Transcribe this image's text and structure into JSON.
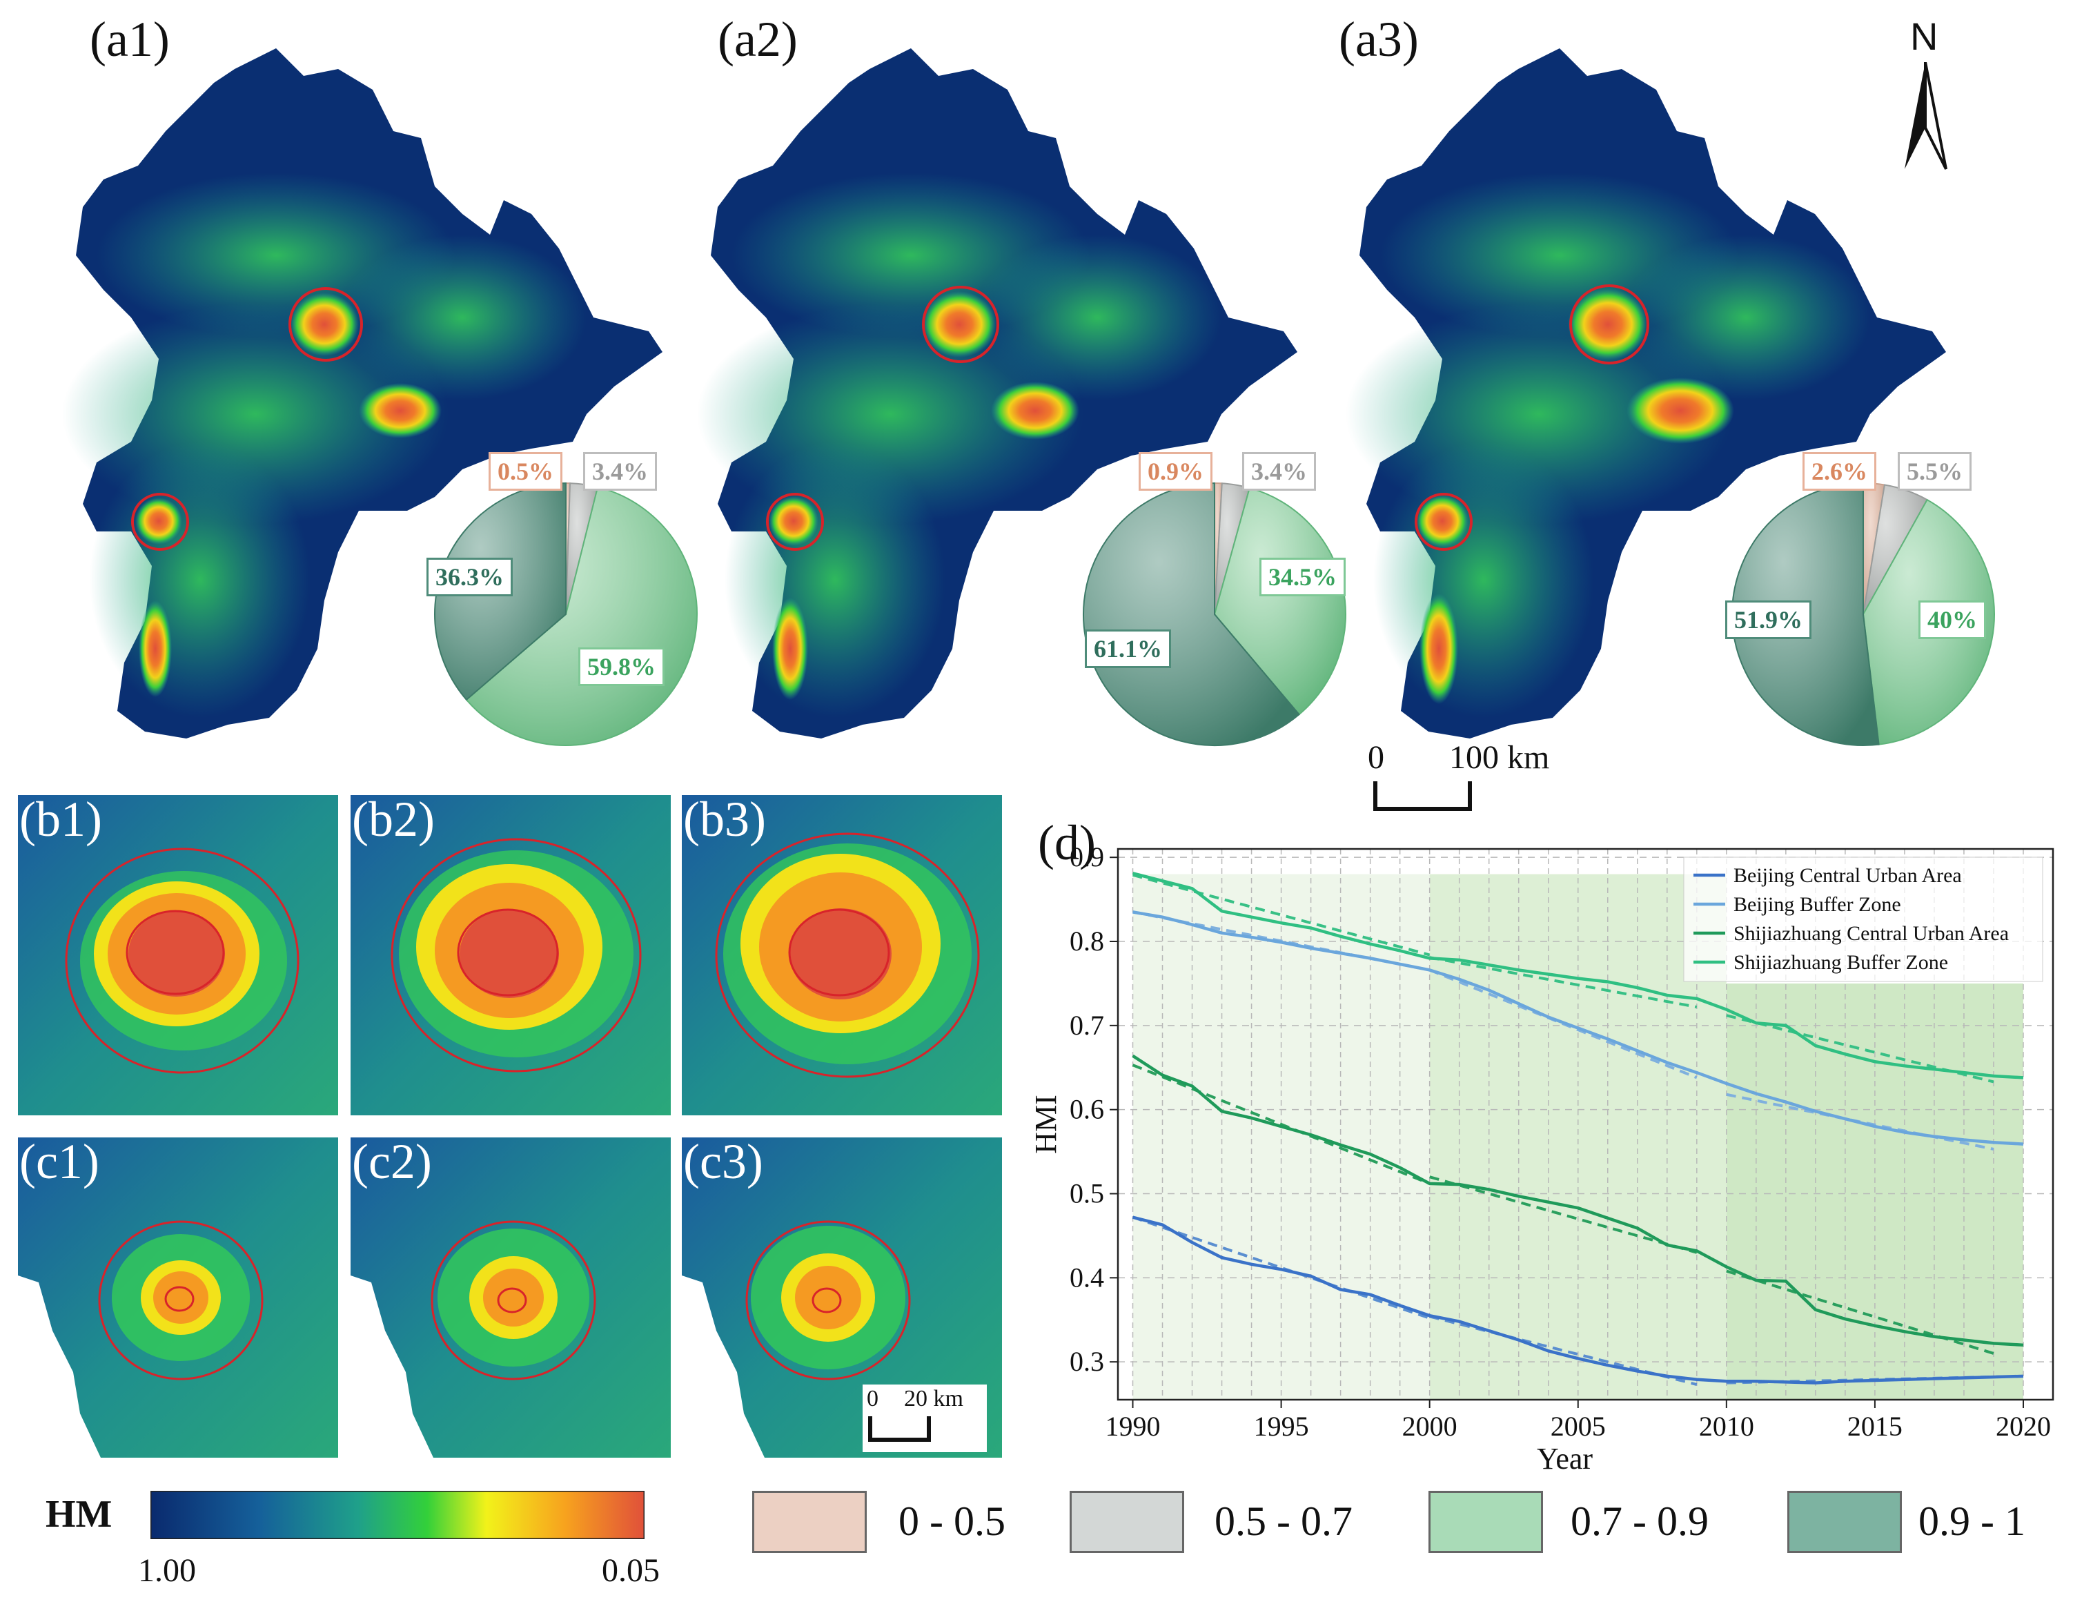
{
  "north_arrow": {
    "letter": "N"
  },
  "scale_bar_main": {
    "zero": "0",
    "end": "100 km"
  },
  "scale_bar_inset": {
    "zero": "0",
    "end": "20 km"
  },
  "panels_a": [
    {
      "label": "(a1)",
      "pie": {
        "slices": [
          {
            "range": "0 - 0.5",
            "value": 0.5,
            "label": "0.5%",
            "color": "#e6c2b0"
          },
          {
            "range": "0.5 - 0.7",
            "value": 3.4,
            "label": "3.4%",
            "color": "#c8cbca"
          },
          {
            "range": "0.7 - 0.9",
            "value": 59.8,
            "label": "59.8%",
            "color": "#a8dcb6"
          },
          {
            "range": "0.9 - 1",
            "value": 36.3,
            "label": "36.3%",
            "color": "#7aa89a"
          }
        ]
      }
    },
    {
      "label": "(a2)",
      "pie": {
        "slices": [
          {
            "range": "0 - 0.5",
            "value": 0.9,
            "label": "0.9%",
            "color": "#e6c2b0"
          },
          {
            "range": "0.5 - 0.7",
            "value": 3.4,
            "label": "3.4%",
            "color": "#c8cbca"
          },
          {
            "range": "0.7 - 0.9",
            "value": 34.5,
            "label": "34.5%",
            "color": "#a8dcb6"
          },
          {
            "range": "0.9 - 1",
            "value": 61.1,
            "label": "61.1%",
            "color": "#7aa89a"
          }
        ]
      }
    },
    {
      "label": "(a3)",
      "pie": {
        "slices": [
          {
            "range": "0 - 0.5",
            "value": 2.6,
            "label": "2.6%",
            "color": "#e6c2b0"
          },
          {
            "range": "0.5 - 0.7",
            "value": 5.5,
            "label": "5.5%",
            "color": "#c8cbca"
          },
          {
            "range": "0.7 - 0.9",
            "value": 40,
            "label": "40%",
            "color": "#a8dcb6"
          },
          {
            "range": "0.9 - 1",
            "value": 51.9,
            "label": "51.9%",
            "color": "#7aa89a"
          }
        ]
      }
    }
  ],
  "insets_b": [
    "(b1)",
    "(b2)",
    "(b3)"
  ],
  "insets_c": [
    "(c1)",
    "(c2)",
    "(c3)"
  ],
  "hm_legend": {
    "title": "HM",
    "min_label": "1.00",
    "max_label": "0.05",
    "colors": [
      "#0a2a6e",
      "#15609a",
      "#1fa08a",
      "#33d03a",
      "#f2f21a",
      "#f7a21e",
      "#e0503a"
    ]
  },
  "class_legend": [
    {
      "label": "0 - 0.5",
      "color": "#ecd0c3"
    },
    {
      "label": "0.5 - 0.7",
      "color": "#d3d7d6"
    },
    {
      "label": "0.7 - 0.9",
      "color": "#a9dbb7"
    },
    {
      "label": "0.9 - 1",
      "color": "#7db3a1"
    }
  ],
  "chart_data": {
    "type": "line",
    "panel_label": "(d)",
    "xlabel": "Year",
    "ylabel": "HMI",
    "xlim": [
      1989.5,
      2021
    ],
    "ylim": [
      0.255,
      0.91
    ],
    "xticks": [
      1990,
      1995,
      2000,
      2005,
      2010,
      2015,
      2020
    ],
    "yticks": [
      0.3,
      0.4,
      0.5,
      0.6,
      0.7,
      0.8,
      0.9
    ],
    "shaded_periods": [
      {
        "from": 1990,
        "to": 2000,
        "color": "#eef6ea"
      },
      {
        "from": 2000,
        "to": 2010,
        "color": "#ddefd5"
      },
      {
        "from": 2010,
        "to": 2020,
        "color": "#cfe8c5"
      }
    ],
    "series": [
      {
        "name": "Beijing Central Urban Area",
        "color": "#3a72c8",
        "x": [
          1990,
          1991,
          1992,
          1993,
          1994,
          1995,
          1996,
          1997,
          1998,
          1999,
          2000,
          2001,
          2002,
          2003,
          2004,
          2005,
          2006,
          2007,
          2008,
          2009,
          2010,
          2011,
          2012,
          2013,
          2014,
          2015,
          2016,
          2017,
          2018,
          2019,
          2020
        ],
        "y": [
          0.472,
          0.463,
          0.442,
          0.424,
          0.416,
          0.41,
          0.402,
          0.386,
          0.38,
          0.367,
          0.355,
          0.348,
          0.337,
          0.326,
          0.313,
          0.304,
          0.296,
          0.289,
          0.283,
          0.279,
          0.277,
          0.277,
          0.276,
          0.275,
          0.277,
          0.278,
          0.279,
          0.28,
          0.281,
          0.282,
          0.283
        ]
      },
      {
        "name": "Beijing Buffer Zone",
        "color": "#6aa6dc",
        "x": [
          1990,
          1991,
          1992,
          1993,
          1994,
          1995,
          1996,
          1997,
          1998,
          1999,
          2000,
          2001,
          2002,
          2003,
          2004,
          2005,
          2006,
          2007,
          2008,
          2009,
          2010,
          2011,
          2012,
          2013,
          2014,
          2015,
          2016,
          2017,
          2018,
          2019,
          2020
        ],
        "y": [
          0.835,
          0.829,
          0.82,
          0.81,
          0.805,
          0.799,
          0.792,
          0.786,
          0.78,
          0.773,
          0.766,
          0.755,
          0.742,
          0.726,
          0.71,
          0.697,
          0.684,
          0.67,
          0.656,
          0.644,
          0.631,
          0.619,
          0.609,
          0.598,
          0.589,
          0.58,
          0.573,
          0.568,
          0.564,
          0.561,
          0.559
        ]
      },
      {
        "name": "Shijiazhuang Central Urban Area",
        "color": "#1f9a5a",
        "x": [
          1990,
          1991,
          1992,
          1993,
          1994,
          1995,
          1996,
          1997,
          1998,
          1999,
          2000,
          2001,
          2002,
          2003,
          2004,
          2005,
          2006,
          2007,
          2008,
          2009,
          2010,
          2011,
          2012,
          2013,
          2014,
          2015,
          2016,
          2017,
          2018,
          2019,
          2020
        ],
        "y": [
          0.664,
          0.641,
          0.628,
          0.598,
          0.59,
          0.58,
          0.57,
          0.558,
          0.547,
          0.531,
          0.512,
          0.511,
          0.505,
          0.497,
          0.49,
          0.483,
          0.471,
          0.459,
          0.439,
          0.432,
          0.413,
          0.397,
          0.396,
          0.362,
          0.351,
          0.343,
          0.336,
          0.33,
          0.326,
          0.322,
          0.32
        ]
      },
      {
        "name": "Shijiazhuang Buffer Zone",
        "color": "#2fbf82",
        "x": [
          1990,
          1991,
          1992,
          1993,
          1994,
          1995,
          1996,
          1997,
          1998,
          1999,
          2000,
          2001,
          2002,
          2003,
          2004,
          2005,
          2006,
          2007,
          2008,
          2009,
          2010,
          2011,
          2012,
          2013,
          2014,
          2015,
          2016,
          2017,
          2018,
          2019,
          2020
        ],
        "y": [
          0.881,
          0.872,
          0.863,
          0.836,
          0.829,
          0.822,
          0.816,
          0.806,
          0.797,
          0.789,
          0.78,
          0.778,
          0.772,
          0.766,
          0.761,
          0.756,
          0.752,
          0.745,
          0.736,
          0.732,
          0.719,
          0.703,
          0.7,
          0.676,
          0.666,
          0.657,
          0.652,
          0.648,
          0.644,
          0.64,
          0.638
        ]
      }
    ],
    "trend_lines": [
      {
        "series": "Beijing Central Urban Area",
        "color": "#5a8ed0",
        "segments": [
          [
            [
              1990,
              0.472
            ],
            [
              2000,
              0.352
            ]
          ],
          [
            [
              2000,
              0.354
            ],
            [
              2009,
              0.273
            ]
          ],
          [
            [
              2010,
              0.275
            ],
            [
              2020,
              0.283
            ]
          ]
        ]
      },
      {
        "series": "Beijing Buffer Zone",
        "color": "#7fb0de",
        "segments": [
          [
            [
              1990,
              0.835
            ],
            [
              2000,
              0.766
            ]
          ],
          [
            [
              2000,
              0.766
            ],
            [
              2009,
              0.638
            ]
          ],
          [
            [
              2010,
              0.618
            ],
            [
              2019,
              0.553
            ]
          ]
        ]
      },
      {
        "series": "Shijiazhuang Central Urban Area",
        "color": "#2a9f5e",
        "segments": [
          [
            [
              1990,
              0.653
            ],
            [
              2000,
              0.512
            ]
          ],
          [
            [
              2000,
              0.52
            ],
            [
              2009,
              0.43
            ]
          ],
          [
            [
              2010,
              0.408
            ],
            [
              2019,
              0.31
            ]
          ]
        ]
      },
      {
        "series": "Shijiazhuang Buffer Zone",
        "color": "#38c086",
        "segments": [
          [
            [
              1990,
              0.879
            ],
            [
              2000,
              0.784
            ]
          ],
          [
            [
              2000,
              0.781
            ],
            [
              2009,
              0.722
            ]
          ],
          [
            [
              2010,
              0.712
            ],
            [
              2019,
              0.633
            ]
          ]
        ]
      }
    ]
  }
}
